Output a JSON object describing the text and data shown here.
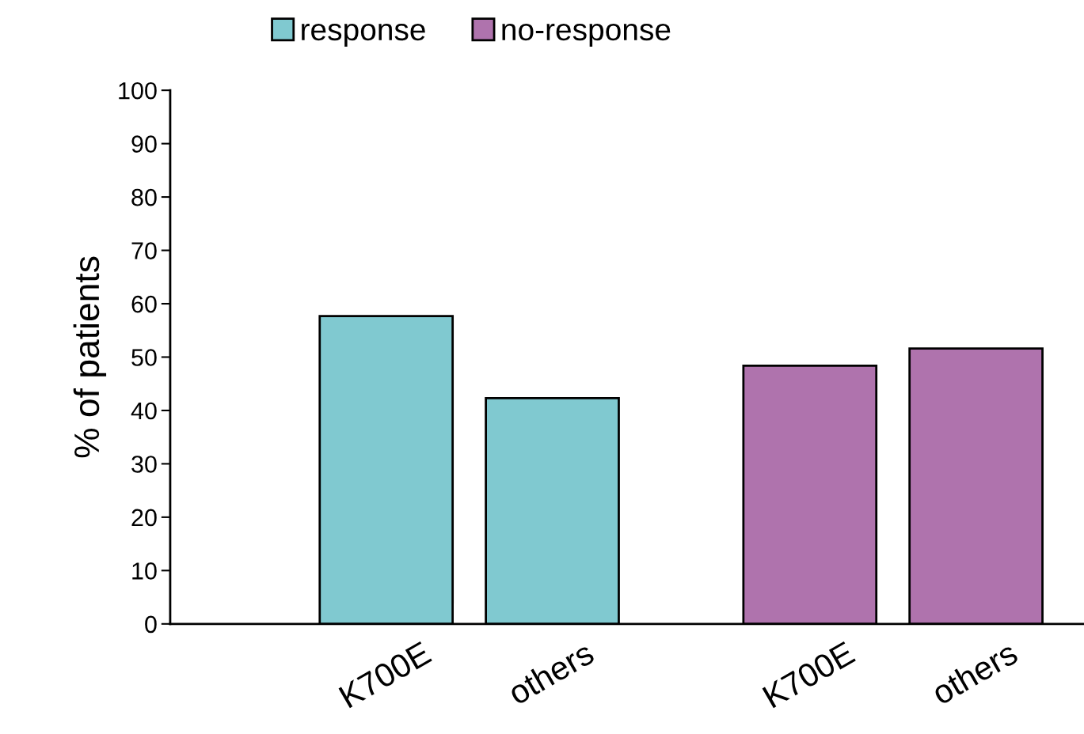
{
  "chart_data": {
    "type": "bar",
    "ylabel": "% of patients",
    "categories": [
      "K700E",
      "others",
      "K700E",
      "others"
    ],
    "series": [
      {
        "name": "response",
        "color": "#80c9d0",
        "values": [
          57.7,
          42.3,
          null,
          null
        ]
      },
      {
        "name": "no-response",
        "color": "#af73ad",
        "values": [
          null,
          null,
          48.4,
          51.6
        ]
      }
    ],
    "ylim": [
      0,
      100
    ],
    "yticks": [
      0,
      10,
      20,
      30,
      40,
      50,
      60,
      70,
      80,
      90,
      100
    ],
    "grid": false,
    "legend": "top"
  }
}
